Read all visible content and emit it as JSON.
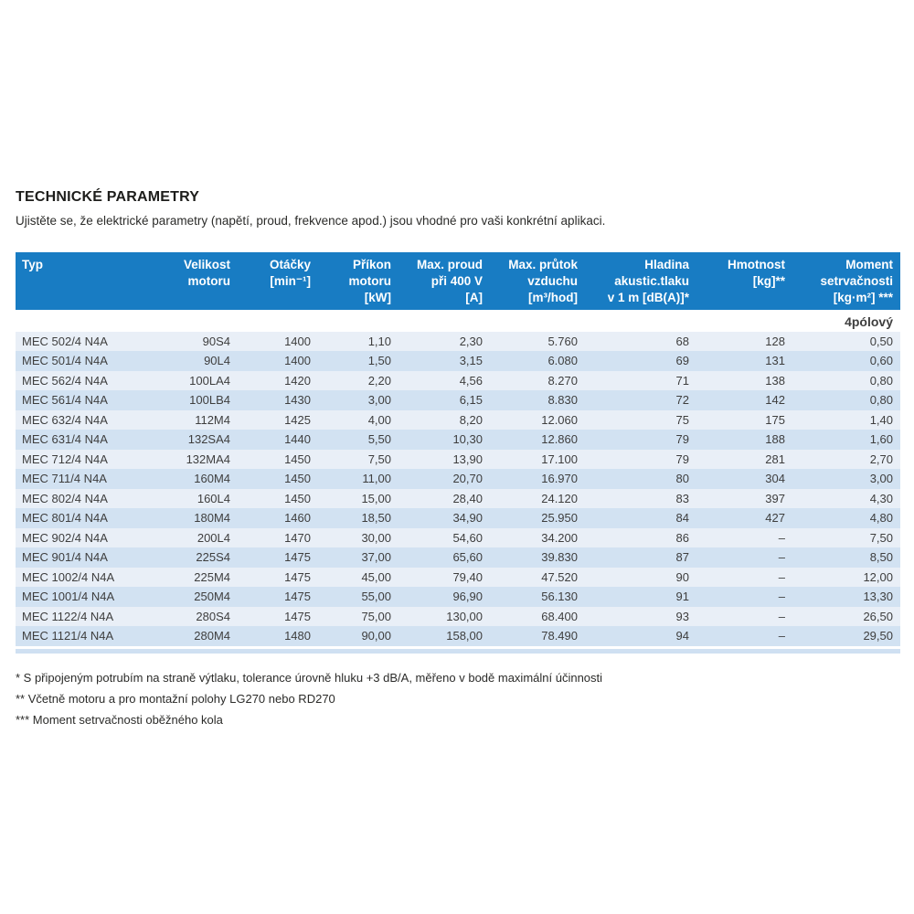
{
  "page": {
    "title": "TECHNICKÉ PARAMETRY",
    "subtitle": "Ujistěte se, že elektrické parametry (napětí, proud, frekvence apod.) jsou vhodné pro vaši konkrétní aplikaci."
  },
  "table": {
    "section_label": "4pólový",
    "columns": [
      "Typ",
      "Velikost\nmotoru",
      "Otáčky\n[min⁻¹]",
      "Příkon\nmotoru\n[kW]",
      "Max. proud\npři 400 V\n[A]",
      "Max. průtok\nvzduchu\n[m³/hod]",
      "Hladina\nakustic.tlaku\nv 1 m [dB(A)]*",
      "Hmotnost\n[kg]**",
      "Moment\nsetrvačnosti\n[kg·m²] ***"
    ],
    "rows": [
      [
        "MEC 502/4 N4A",
        "90S4",
        "1400",
        "1,10",
        "2,30",
        "5.760",
        "68",
        "128",
        "0,50"
      ],
      [
        "MEC 501/4 N4A",
        "90L4",
        "1400",
        "1,50",
        "3,15",
        "6.080",
        "69",
        "131",
        "0,60"
      ],
      [
        "MEC 562/4 N4A",
        "100LA4",
        "1420",
        "2,20",
        "4,56",
        "8.270",
        "71",
        "138",
        "0,80"
      ],
      [
        "MEC 561/4 N4A",
        "100LB4",
        "1430",
        "3,00",
        "6,15",
        "8.830",
        "72",
        "142",
        "0,80"
      ],
      [
        "MEC 632/4 N4A",
        "112M4",
        "1425",
        "4,00",
        "8,20",
        "12.060",
        "75",
        "175",
        "1,40"
      ],
      [
        "MEC 631/4 N4A",
        "132SA4",
        "1440",
        "5,50",
        "10,30",
        "12.860",
        "79",
        "188",
        "1,60"
      ],
      [
        "MEC 712/4 N4A",
        "132MA4",
        "1450",
        "7,50",
        "13,90",
        "17.100",
        "79",
        "281",
        "2,70"
      ],
      [
        "MEC 711/4 N4A",
        "160M4",
        "1450",
        "11,00",
        "20,70",
        "16.970",
        "80",
        "304",
        "3,00"
      ],
      [
        "MEC 802/4 N4A",
        "160L4",
        "1450",
        "15,00",
        "28,40",
        "24.120",
        "83",
        "397",
        "4,30"
      ],
      [
        "MEC 801/4 N4A",
        "180M4",
        "1460",
        "18,50",
        "34,90",
        "25.950",
        "84",
        "427",
        "4,80"
      ],
      [
        "MEC 902/4 N4A",
        "200L4",
        "1470",
        "30,00",
        "54,60",
        "34.200",
        "86",
        "–",
        "7,50"
      ],
      [
        "MEC 901/4 N4A",
        "225S4",
        "1475",
        "37,00",
        "65,60",
        "39.830",
        "87",
        "–",
        "8,50"
      ],
      [
        "MEC 1002/4 N4A",
        "225M4",
        "1475",
        "45,00",
        "79,40",
        "47.520",
        "90",
        "–",
        "12,00"
      ],
      [
        "MEC 1001/4 N4A",
        "250M4",
        "1475",
        "55,00",
        "96,90",
        "56.130",
        "91",
        "–",
        "13,30"
      ],
      [
        "MEC 1122/4 N4A",
        "280S4",
        "1475",
        "75,00",
        "130,00",
        "68.400",
        "93",
        "–",
        "26,50"
      ],
      [
        "MEC 1121/4 N4A",
        "280M4",
        "1480",
        "90,00",
        "158,00",
        "78.490",
        "94",
        "–",
        "29,50"
      ]
    ]
  },
  "footnotes": [
    "* S připojeným potrubím na straně výtlaku, tolerance úrovně hluku +3 dB/A, měřeno v bodě maximální účinnosti",
    "** Včetně motoru a pro montažní polohy LG270 nebo RD270",
    "*** Moment setrvačnosti oběžného kola"
  ],
  "colors": {
    "header_bg": "#187cc3",
    "row_light": "#e9eff7",
    "row_dark": "#d2e2f2",
    "accent_bar": "#cfe0f2"
  }
}
